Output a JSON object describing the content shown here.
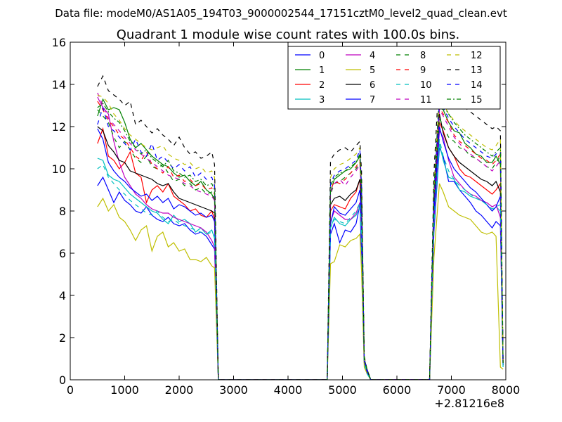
{
  "header": {
    "datafile": "Data file: modeM0/AS1A05_194T03_9000002544_17151cztM0_level2_quad_clean.evt"
  },
  "chart_data": {
    "type": "line",
    "title": "Quadrant 1 module wise count rates with 100.0s bins.",
    "xlabel": "",
    "ylabel": "",
    "x_offset_label": "+2.81216e8",
    "xlim": [
      0,
      8000
    ],
    "ylim": [
      0,
      16
    ],
    "xticks": [
      "0",
      "1000",
      "2000",
      "3000",
      "4000",
      "5000",
      "6000",
      "7000",
      "8000"
    ],
    "yticks": [
      "0",
      "2",
      "4",
      "6",
      "8",
      "10",
      "12",
      "14",
      "16"
    ],
    "grid": false,
    "legend_position": "top-right",
    "x": [
      500,
      600,
      700,
      800,
      900,
      1000,
      1100,
      1200,
      1300,
      1400,
      1500,
      1600,
      1700,
      1800,
      1900,
      2000,
      2100,
      2200,
      2300,
      2400,
      2500,
      2600,
      2650,
      2720,
      4720,
      4780,
      4850,
      4950,
      5050,
      5150,
      5250,
      5320,
      5350,
      5400,
      5450,
      5520,
      6600,
      6680,
      6780,
      6850,
      6950,
      7050,
      7150,
      7250,
      7350,
      7450,
      7550,
      7650,
      7750,
      7820,
      7900,
      7950
    ],
    "series": [
      {
        "name": "0",
        "color": "#0000ff",
        "dash": "solid",
        "values": [
          9.2,
          9.6,
          9.0,
          8.4,
          8.9,
          8.5,
          8.3,
          8.0,
          7.9,
          8.2,
          7.8,
          7.6,
          7.5,
          7.7,
          7.4,
          7.3,
          7.4,
          7.1,
          6.9,
          7.0,
          6.8,
          6.4,
          6.2,
          0.0,
          0.0,
          6.9,
          7.4,
          6.5,
          7.1,
          7.0,
          7.4,
          8.3,
          6.0,
          0.8,
          0.4,
          0.0,
          0.0,
          7.0,
          11.0,
          10.6,
          9.4,
          9.4,
          9.0,
          8.7,
          8.4,
          8.0,
          7.8,
          7.5,
          7.2,
          7.5,
          7.3,
          0.7
        ]
      },
      {
        "name": "1",
        "color": "#008000",
        "dash": "solid",
        "values": [
          12.5,
          13.3,
          12.8,
          12.9,
          12.8,
          12.2,
          11.4,
          11.0,
          11.2,
          10.9,
          10.6,
          10.4,
          10.2,
          10.1,
          9.8,
          9.6,
          9.7,
          9.4,
          9.2,
          9.4,
          9.0,
          8.8,
          8.5,
          0.0,
          0.0,
          8.9,
          9.5,
          9.7,
          9.9,
          10.0,
          10.3,
          10.6,
          9.2,
          1.0,
          0.5,
          0.0,
          0.0,
          8.5,
          12.9,
          12.8,
          12.2,
          11.8,
          11.7,
          11.2,
          11.0,
          10.7,
          10.6,
          10.3,
          10.3,
          10.6,
          10.2,
          0.8
        ]
      },
      {
        "name": "2",
        "color": "#ff0000",
        "dash": "solid",
        "values": [
          11.2,
          11.9,
          10.6,
          10.4,
          10.0,
          10.3,
          10.8,
          9.8,
          9.6,
          8.4,
          9.0,
          9.2,
          8.9,
          9.3,
          8.7,
          8.5,
          8.3,
          8.0,
          8.1,
          7.8,
          7.7,
          8.0,
          7.6,
          0.0,
          0.0,
          8.0,
          8.3,
          8.2,
          8.1,
          8.6,
          8.9,
          9.5,
          7.8,
          0.9,
          0.4,
          0.0,
          0.0,
          8.0,
          12.2,
          11.8,
          11.0,
          10.6,
          10.0,
          9.7,
          9.6,
          9.4,
          9.2,
          9.0,
          8.8,
          9.0,
          9.3,
          0.8
        ]
      },
      {
        "name": "3",
        "color": "#00bfbf",
        "dash": "solid",
        "values": [
          10.5,
          10.4,
          9.7,
          9.5,
          9.4,
          9.1,
          8.8,
          8.6,
          8.4,
          8.2,
          8.0,
          7.9,
          7.6,
          7.4,
          7.8,
          7.5,
          7.6,
          7.4,
          7.0,
          7.2,
          6.9,
          7.1,
          6.7,
          0.0,
          0.0,
          7.2,
          7.7,
          7.4,
          7.3,
          7.6,
          7.8,
          8.2,
          6.8,
          0.8,
          0.3,
          0.0,
          0.0,
          7.3,
          11.2,
          10.4,
          9.6,
          9.5,
          9.0,
          8.9,
          8.7,
          8.6,
          8.5,
          8.3,
          8.0,
          8.2,
          8.0,
          0.6
        ]
      },
      {
        "name": "4",
        "color": "#bf00bf",
        "dash": "solid",
        "values": [
          13.4,
          12.9,
          12.6,
          11.3,
          10.3,
          9.6,
          9.2,
          8.8,
          8.6,
          8.3,
          8.1,
          8.0,
          7.9,
          7.9,
          7.7,
          7.6,
          7.5,
          7.4,
          7.3,
          7.2,
          7.0,
          6.6,
          6.3,
          0.0,
          0.0,
          7.5,
          8.0,
          7.8,
          7.6,
          7.6,
          7.9,
          8.4,
          7.2,
          0.8,
          0.4,
          0.0,
          0.0,
          7.5,
          11.8,
          11.5,
          10.4,
          9.6,
          9.3,
          9.0,
          8.8,
          8.7,
          8.5,
          8.4,
          8.2,
          8.3,
          7.7,
          0.7
        ]
      },
      {
        "name": "5",
        "color": "#bfbf00",
        "dash": "solid",
        "values": [
          8.2,
          8.6,
          8.0,
          8.3,
          7.7,
          7.5,
          7.1,
          6.6,
          7.1,
          7.3,
          6.1,
          6.8,
          7.0,
          6.3,
          6.5,
          6.1,
          6.2,
          5.7,
          5.7,
          5.6,
          5.8,
          5.4,
          5.3,
          0.0,
          0.0,
          5.5,
          5.6,
          6.4,
          6.3,
          6.6,
          6.7,
          6.9,
          5.2,
          0.6,
          0.3,
          0.0,
          0.0,
          5.8,
          9.3,
          8.9,
          8.2,
          8.0,
          7.8,
          7.7,
          7.6,
          7.3,
          7.0,
          6.9,
          7.0,
          6.8,
          0.6,
          0.5
        ]
      },
      {
        "name": "6",
        "color": "#000000",
        "dash": "solid",
        "values": [
          12.0,
          11.8,
          11.1,
          10.8,
          10.4,
          10.3,
          9.9,
          9.8,
          9.7,
          9.6,
          9.5,
          9.3,
          9.2,
          9.3,
          8.9,
          8.6,
          8.5,
          8.4,
          8.3,
          8.2,
          8.1,
          8.0,
          7.9,
          0.0,
          0.0,
          8.3,
          8.6,
          8.7,
          8.5,
          8.8,
          9.0,
          9.5,
          8.0,
          0.9,
          0.4,
          0.0,
          0.0,
          8.5,
          12.6,
          11.7,
          11.0,
          10.6,
          10.3,
          10.1,
          9.9,
          9.7,
          9.5,
          9.4,
          9.2,
          9.4,
          8.9,
          0.8
        ]
      },
      {
        "name": "7",
        "color": "#0000ff",
        "dash": "solid",
        "values": [
          11.9,
          11.4,
          10.3,
          9.9,
          9.6,
          9.4,
          9.1,
          8.9,
          8.7,
          8.8,
          8.5,
          8.7,
          8.4,
          8.6,
          8.1,
          8.3,
          8.2,
          8.0,
          7.8,
          7.9,
          7.7,
          7.8,
          7.5,
          0.0,
          0.0,
          7.4,
          8.2,
          7.9,
          7.8,
          8.1,
          8.4,
          9.0,
          7.6,
          0.9,
          0.4,
          0.0,
          0.0,
          7.9,
          12.0,
          11.3,
          10.5,
          10.0,
          9.7,
          9.4,
          9.1,
          8.9,
          8.6,
          8.3,
          8.0,
          8.2,
          8.7,
          0.7
        ]
      },
      {
        "name": "8",
        "color": "#008000",
        "dash": "dashed",
        "values": [
          12.8,
          12.5,
          12.2,
          11.5,
          11.0,
          11.3,
          10.9,
          10.5,
          10.3,
          10.6,
          10.1,
          10.0,
          10.2,
          9.8,
          9.4,
          9.5,
          9.2,
          9.3,
          9.0,
          9.1,
          8.8,
          8.9,
          8.6,
          0.0,
          0.0,
          8.8,
          9.3,
          9.4,
          9.6,
          9.8,
          10.0,
          10.3,
          8.9,
          1.0,
          0.5,
          0.0,
          0.0,
          8.6,
          12.4,
          12.0,
          11.5,
          11.3,
          11.0,
          10.9,
          10.6,
          10.5,
          10.3,
          10.1,
          10.0,
          10.3,
          10.6,
          0.8
        ]
      },
      {
        "name": "9",
        "color": "#ff0000",
        "dash": "dashed",
        "values": [
          13.2,
          12.8,
          12.3,
          12.0,
          11.6,
          11.4,
          11.0,
          10.6,
          10.4,
          10.8,
          10.2,
          10.0,
          9.8,
          10.1,
          9.6,
          9.7,
          9.4,
          9.5,
          9.2,
          9.3,
          9.0,
          9.1,
          8.8,
          0.0,
          0.0,
          9.0,
          9.4,
          9.3,
          9.5,
          9.8,
          10.1,
          10.4,
          9.0,
          1.0,
          0.5,
          0.0,
          0.0,
          8.8,
          12.9,
          12.6,
          12.2,
          11.6,
          11.3,
          11.1,
          10.9,
          10.7,
          10.5,
          10.4,
          10.2,
          10.4,
          10.7,
          0.8
        ]
      },
      {
        "name": "10",
        "color": "#00bfbf",
        "dash": "dashed",
        "values": [
          10.0,
          10.2,
          9.6,
          9.3,
          9.0,
          8.8,
          8.5,
          8.3,
          8.1,
          7.9,
          7.8,
          8.0,
          7.7,
          7.5,
          7.6,
          7.4,
          7.3,
          7.2,
          7.1,
          7.0,
          6.9,
          7.0,
          6.8,
          0.0,
          0.0,
          7.2,
          7.6,
          7.5,
          7.4,
          7.7,
          8.0,
          8.4,
          7.0,
          0.8,
          0.3,
          0.0,
          0.0,
          7.4,
          11.4,
          10.6,
          9.9,
          9.5,
          9.2,
          9.0,
          8.8,
          8.6,
          8.5,
          8.3,
          8.1,
          8.2,
          8.3,
          0.6
        ]
      },
      {
        "name": "11",
        "color": "#bf00bf",
        "dash": "dashed",
        "values": [
          13.6,
          13.0,
          12.4,
          12.1,
          11.8,
          11.5,
          11.2,
          10.9,
          10.7,
          10.5,
          10.3,
          10.1,
          9.9,
          9.7,
          9.6,
          9.5,
          9.3,
          9.2,
          9.0,
          8.9,
          8.8,
          8.7,
          8.5,
          0.0,
          0.0,
          8.9,
          9.3,
          9.5,
          9.2,
          9.6,
          9.9,
          10.2,
          8.8,
          1.0,
          0.5,
          0.0,
          0.0,
          8.7,
          12.8,
          12.5,
          12.0,
          11.5,
          11.2,
          10.9,
          10.7,
          10.5,
          10.3,
          10.1,
          9.9,
          10.1,
          10.4,
          0.8
        ]
      },
      {
        "name": "12",
        "color": "#bfbf00",
        "dash": "dashed",
        "values": [
          13.5,
          13.4,
          13.1,
          12.6,
          12.3,
          11.9,
          11.6,
          11.4,
          11.2,
          11.0,
          10.9,
          11.0,
          11.1,
          10.7,
          10.5,
          10.4,
          10.2,
          10.3,
          10.0,
          10.1,
          9.8,
          9.9,
          9.6,
          0.0,
          0.0,
          9.6,
          10.0,
          10.2,
          10.3,
          10.5,
          10.7,
          11.0,
          9.5,
          1.1,
          0.5,
          0.0,
          0.0,
          9.2,
          13.4,
          13.1,
          12.6,
          12.3,
          12.0,
          11.8,
          11.6,
          11.4,
          11.2,
          11.0,
          10.9,
          11.1,
          11.4,
          0.9
        ]
      },
      {
        "name": "13",
        "color": "#000000",
        "dash": "dashed",
        "values": [
          13.9,
          14.4,
          13.7,
          13.5,
          13.3,
          13.0,
          13.2,
          12.1,
          12.3,
          12.0,
          11.7,
          11.9,
          11.6,
          11.4,
          11.1,
          11.5,
          11.0,
          10.7,
          10.8,
          10.5,
          10.6,
          10.8,
          10.2,
          0.0,
          0.0,
          10.4,
          10.7,
          10.9,
          11.0,
          10.8,
          11.1,
          11.3,
          9.9,
          1.1,
          0.5,
          0.0,
          0.0,
          9.8,
          14.7,
          14.4,
          13.8,
          13.5,
          13.2,
          12.9,
          12.7,
          12.5,
          12.3,
          12.1,
          11.9,
          12.0,
          11.8,
          0.9
        ]
      },
      {
        "name": "14",
        "color": "#0000ff",
        "dash": "dashed",
        "values": [
          12.1,
          12.9,
          12.0,
          11.8,
          11.5,
          11.2,
          10.9,
          11.4,
          10.8,
          10.6,
          11.2,
          10.4,
          10.6,
          10.3,
          10.0,
          10.2,
          9.9,
          10.1,
          9.6,
          9.8,
          9.5,
          9.6,
          9.2,
          0.0,
          0.0,
          9.3,
          9.7,
          9.9,
          10.0,
          10.2,
          10.4,
          10.9,
          9.2,
          1.0,
          0.5,
          0.0,
          0.0,
          8.9,
          13.2,
          12.9,
          12.4,
          12.0,
          11.7,
          11.4,
          11.2,
          11.0,
          10.8,
          10.6,
          10.5,
          10.7,
          10.8,
          0.8
        ]
      },
      {
        "name": "15",
        "color": "#008000",
        "dash": "dashdot",
        "values": [
          12.9,
          13.1,
          12.7,
          12.4,
          12.2,
          11.8,
          11.3,
          11.0,
          10.7,
          10.9,
          10.5,
          10.3,
          10.1,
          10.4,
          9.9,
          9.8,
          9.6,
          9.7,
          9.4,
          9.5,
          9.2,
          9.3,
          9.0,
          0.0,
          0.0,
          9.2,
          9.6,
          9.8,
          9.9,
          10.1,
          10.3,
          10.7,
          9.1,
          1.0,
          0.5,
          0.0,
          0.0,
          9.0,
          13.6,
          13.0,
          12.6,
          12.2,
          11.9,
          11.6,
          11.4,
          11.2,
          11.0,
          10.8,
          10.6,
          10.8,
          11.0,
          0.8
        ]
      }
    ]
  }
}
